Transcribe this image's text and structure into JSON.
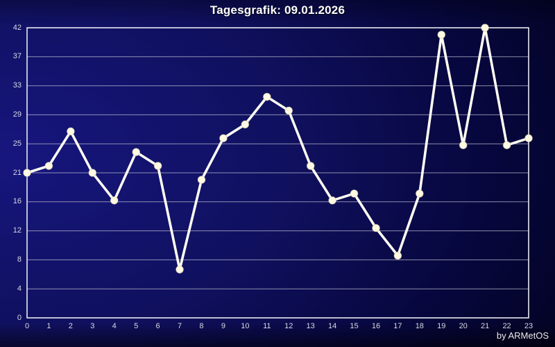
{
  "header": {
    "title": "Tagesgrafik: 09.01.2026"
  },
  "footer": {
    "credit": "by ARMetOS"
  },
  "colors": {
    "bg_center": "#16167e",
    "bg_mid": "#10105f",
    "bg_dark": "#070740",
    "bg_edge": "#02021c",
    "frame": "#e9e9f2",
    "grid": "#b9b9cd",
    "line": "#fffdf2",
    "marker": "#fff8e2",
    "tick_text": "#d9d9e6",
    "title_text": "#ffffff"
  },
  "chart_data": {
    "type": "line",
    "title": "Tagesgrafik: 09.01.2026",
    "x": [
      0,
      1,
      2,
      3,
      4,
      5,
      6,
      7,
      8,
      9,
      10,
      11,
      12,
      13,
      14,
      15,
      16,
      17,
      18,
      19,
      20,
      21,
      22,
      23
    ],
    "values": [
      21,
      22,
      27,
      21,
      17,
      24,
      22,
      7,
      20,
      26,
      28,
      32,
      30,
      22,
      17,
      18,
      13,
      9,
      18,
      41,
      25,
      42,
      25,
      26
    ],
    "ylim": [
      0,
      42
    ],
    "y_tick_labels": [
      "42",
      "37",
      "33",
      "29",
      "25",
      "21",
      "16",
      "12",
      "8",
      "4",
      "0"
    ],
    "x_tick_labels": [
      "0",
      "1",
      "2",
      "3",
      "4",
      "5",
      "6",
      "7",
      "8",
      "9",
      "10",
      "11",
      "12",
      "13",
      "14",
      "15",
      "16",
      "17",
      "18",
      "19",
      "20",
      "21",
      "22",
      "23"
    ],
    "xlabel": "",
    "ylabel": "",
    "grid": "horizontal",
    "legend": "none",
    "marker_style": "filled-circle",
    "annotation": "by ARMetOS"
  }
}
